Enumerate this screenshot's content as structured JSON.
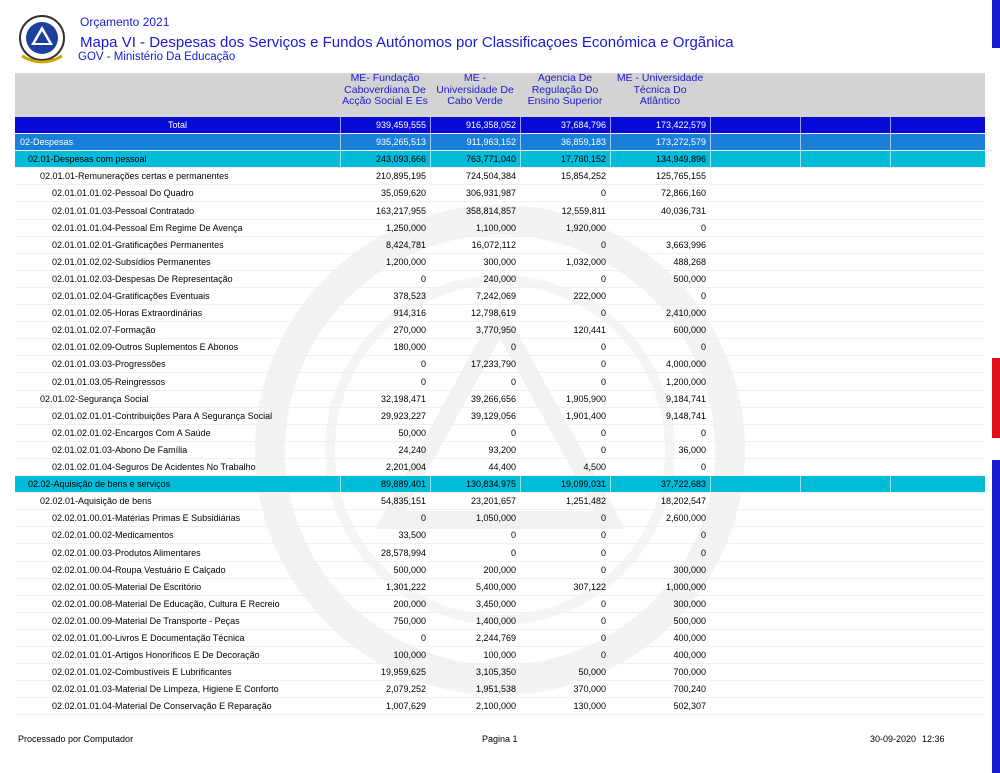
{
  "header": {
    "budget": "Orçamento 2021",
    "title": "Mapa VI - Despesas dos Serviços e Fundos Autónomos por Classificaçoes Económica e Orgãnica",
    "subtitle": "GOV - Ministério Da Educação"
  },
  "table": {
    "columns": [
      [
        "ME- Fundação",
        "Caboverdiana De",
        "Acção Social E Es"
      ],
      [
        "ME -",
        "Universidade De",
        "Cabo Verde"
      ],
      [
        "Agencia De",
        "Regulação Do",
        "Ensino Superior"
      ],
      [
        "ME - Universidade",
        "Técnica Do",
        "Atlântico"
      ]
    ],
    "rows": [
      {
        "label": "Total",
        "values": [
          "939,459,555",
          "916,358,052",
          "37,684,796",
          "173,422,579"
        ]
      },
      {
        "label": "02-Despesas",
        "values": [
          "935,265,513",
          "911,963,152",
          "36,859,183",
          "173,272,579"
        ]
      },
      {
        "label": "02.01-Despesas com pessoal",
        "values": [
          "243,093,666",
          "763,771,040",
          "17,760,152",
          "134,949,896"
        ]
      },
      {
        "label": "02.01.01-Remunerações certas e permanentes",
        "values": [
          "210,895,195",
          "724,504,384",
          "15,854,252",
          "125,765,155"
        ]
      },
      {
        "label": "02.01.01.01.02-Pessoal Do Quadro",
        "values": [
          "35,059,620",
          "306,931,987",
          "0",
          "72,866,160"
        ]
      },
      {
        "label": "02.01.01.01.03-Pessoal Contratado",
        "values": [
          "163,217,955",
          "358,814,857",
          "12,559,811",
          "40,036,731"
        ]
      },
      {
        "label": "02.01.01.01.04-Pessoal Em Regime De Avença",
        "values": [
          "1,250,000",
          "1,100,000",
          "1,920,000",
          "0"
        ]
      },
      {
        "label": "02.01.01.02.01-Gratificações Permanentes",
        "values": [
          "8,424,781",
          "16,072,112",
          "0",
          "3,663,996"
        ]
      },
      {
        "label": "02.01.01.02.02-Subsídios Permanentes",
        "values": [
          "1,200,000",
          "300,000",
          "1,032,000",
          "488,268"
        ]
      },
      {
        "label": "02.01.01.02.03-Despesas De Representação",
        "values": [
          "0",
          "240,000",
          "0",
          "500,000"
        ]
      },
      {
        "label": "02.01.01.02.04-Gratificações Eventuais",
        "values": [
          "378,523",
          "7,242,069",
          "222,000",
          "0"
        ]
      },
      {
        "label": "02.01.01.02.05-Horas Extraordinárias",
        "values": [
          "914,316",
          "12,798,619",
          "0",
          "2,410,000"
        ]
      },
      {
        "label": "02.01.01.02.07-Formação",
        "values": [
          "270,000",
          "3,770,950",
          "120,441",
          "600,000"
        ]
      },
      {
        "label": "02.01.01.02.09-Outros Suplementos E Abonos",
        "values": [
          "180,000",
          "0",
          "0",
          "0"
        ]
      },
      {
        "label": "02.01.01.03.03-Progressões",
        "values": [
          "0",
          "17,233,790",
          "0",
          "4,000,000"
        ]
      },
      {
        "label": "02.01.01.03.05-Reingressos",
        "values": [
          "0",
          "0",
          "0",
          "1,200,000"
        ]
      },
      {
        "label": "02.01.02-Segurança Social",
        "values": [
          "32,198,471",
          "39,266,656",
          "1,905,900",
          "9,184,741"
        ]
      },
      {
        "label": "02.01.02.01.01-Contribuições Para A Segurança Social",
        "values": [
          "29,923,227",
          "39,129,056",
          "1,901,400",
          "9,148,741"
        ]
      },
      {
        "label": "02.01.02.01.02-Encargos Com A Saúde",
        "values": [
          "50,000",
          "0",
          "0",
          "0"
        ]
      },
      {
        "label": "02.01.02.01.03-Abono De Família",
        "values": [
          "24,240",
          "93,200",
          "0",
          "36,000"
        ]
      },
      {
        "label": "02.01.02.01.04-Seguros De Acidentes No Trabalho",
        "values": [
          "2,201,004",
          "44,400",
          "4,500",
          "0"
        ]
      },
      {
        "label": "02.02-Aquisição de bens e serviços",
        "values": [
          "89,889,401",
          "130,834,975",
          "19,099,031",
          "37,722,683"
        ]
      },
      {
        "label": "02.02.01-Aquisição de bens",
        "values": [
          "54,835,151",
          "23,201,657",
          "1,251,482",
          "18,202,547"
        ]
      },
      {
        "label": "02.02.01.00.01-Matérias Primas E Subsidiárias",
        "values": [
          "0",
          "1,050,000",
          "0",
          "2,600,000"
        ]
      },
      {
        "label": "02.02.01.00.02-Medicamentos",
        "values": [
          "33,500",
          "0",
          "0",
          "0"
        ]
      },
      {
        "label": "02.02.01.00.03-Produtos Alimentares",
        "values": [
          "28,578,994",
          "0",
          "0",
          "0"
        ]
      },
      {
        "label": "02.02.01.00.04-Roupa  Vestuário E Calçado",
        "values": [
          "500,000",
          "200,000",
          "0",
          "300,000"
        ]
      },
      {
        "label": "02.02.01.00.05-Material De Escritório",
        "values": [
          "1,301,222",
          "5,400,000",
          "307,122",
          "1,000,000"
        ]
      },
      {
        "label": "02.02.01.00.08-Material De Educação, Cultura E Recreio",
        "values": [
          "200,000",
          "3,450,000",
          "0",
          "300,000"
        ]
      },
      {
        "label": "02.02.01.00.09-Material De Transporte - Peças",
        "values": [
          "750,000",
          "1,400,000",
          "0",
          "500,000"
        ]
      },
      {
        "label": "02.02.01.01.00-Livros E Documentação Técnica",
        "values": [
          "0",
          "2,244,769",
          "0",
          "400,000"
        ]
      },
      {
        "label": "02.02.01.01.01-Artigos Honoríficos E De Decoração",
        "values": [
          "100,000",
          "100,000",
          "0",
          "400,000"
        ]
      },
      {
        "label": "02.02.01.01.02-Combustíveis E Lubrificantes",
        "values": [
          "19,959,625",
          "3,105,350",
          "50,000",
          "700,000"
        ]
      },
      {
        "label": "02.02.01.01.03-Material De Limpeza, Higiene E Conforto",
        "values": [
          "2,079,252",
          "1,951,538",
          "370,000",
          "700,240"
        ]
      },
      {
        "label": "02.02.01.01.04-Material De Conservação E Reparação",
        "values": [
          "1,007,629",
          "2,100,000",
          "130,000",
          "502,307"
        ]
      }
    ]
  },
  "footer": {
    "left": "Processado por Computador",
    "center": "Pagina 1",
    "date": "30-09-2020",
    "time": "12:36"
  }
}
